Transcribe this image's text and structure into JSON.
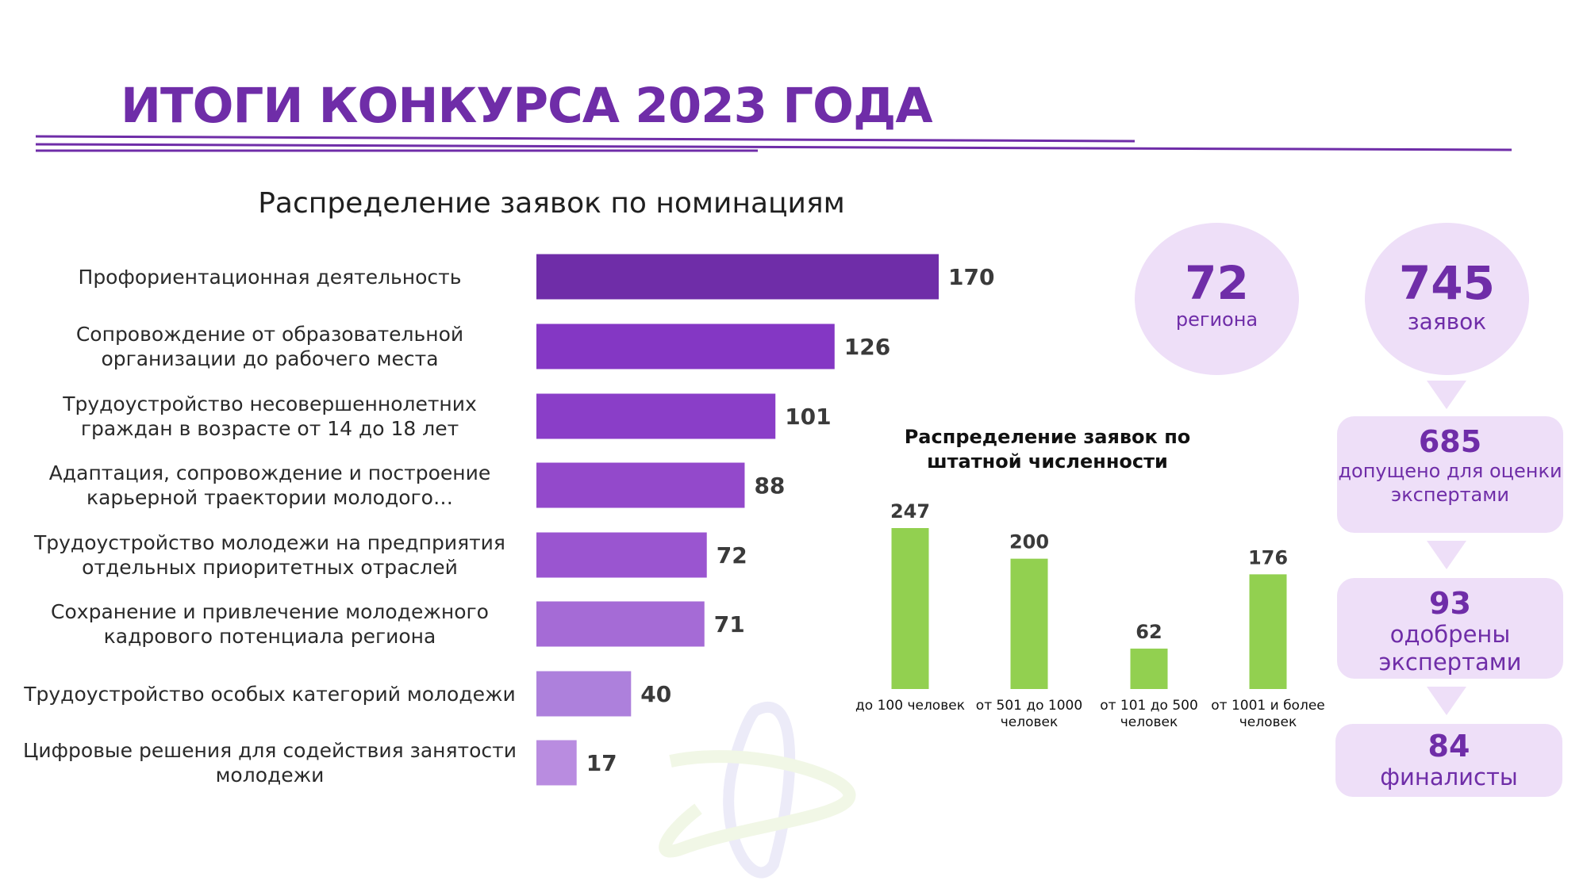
{
  "title": "ИТОГИ КОНКУРСА 2023 ГОДА",
  "colors": {
    "brand": "#6f2da8",
    "bars_gradient": [
      "#6f2da8",
      "#8437c4",
      "#8a3ec8",
      "#9349cb",
      "#9a55d0",
      "#a56bd6",
      "#ad80dc",
      "#b98ce0"
    ],
    "green_bars": "#92d050",
    "pale": "#eedff8"
  },
  "stats": {
    "regions": {
      "value": "72",
      "label": "региона"
    },
    "applications": {
      "value": "745",
      "label": "заявок"
    },
    "admitted": {
      "value": "685",
      "label": "допущено для оценки экспертами"
    },
    "approved": {
      "value": "93",
      "label": "одобрены экспертами"
    },
    "finalists": {
      "value": "84",
      "label": "финалисты"
    }
  },
  "chart_data": [
    {
      "type": "bar",
      "orientation": "horizontal",
      "title": "Распределение заявок по номинациям",
      "categories": [
        "Профориентационная деятельность",
        "Сопровождение от образовательной организации до рабочего места",
        "Трудоустройство несовершеннолетних граждан в возрасте от 14 до 18 лет",
        "Адаптация, сопровождение и построение карьерной траектории молодого…",
        "Трудоустройство молодежи на предприятия отдельных приоритетных отраслей",
        "Сохранение и привлечение молодежного кадрового потенциала региона",
        "Трудоустройство особых категорий молодежи",
        "Цифровые решения для содействия занятости молодежи"
      ],
      "values": [
        170,
        126,
        101,
        88,
        72,
        71,
        40,
        17
      ],
      "xlim": [
        0,
        180
      ],
      "grid": false,
      "legend": "none"
    },
    {
      "type": "bar",
      "orientation": "vertical",
      "title": "Распределение заявок по штатной численности",
      "categories": [
        "до 100 человек",
        "от 501 до 1000 человек",
        "от 101 до 500 человек",
        "от 1001 и более человек"
      ],
      "values": [
        247,
        200,
        62,
        176
      ],
      "ylim": [
        0,
        260
      ],
      "grid": false,
      "legend": "none"
    }
  ]
}
